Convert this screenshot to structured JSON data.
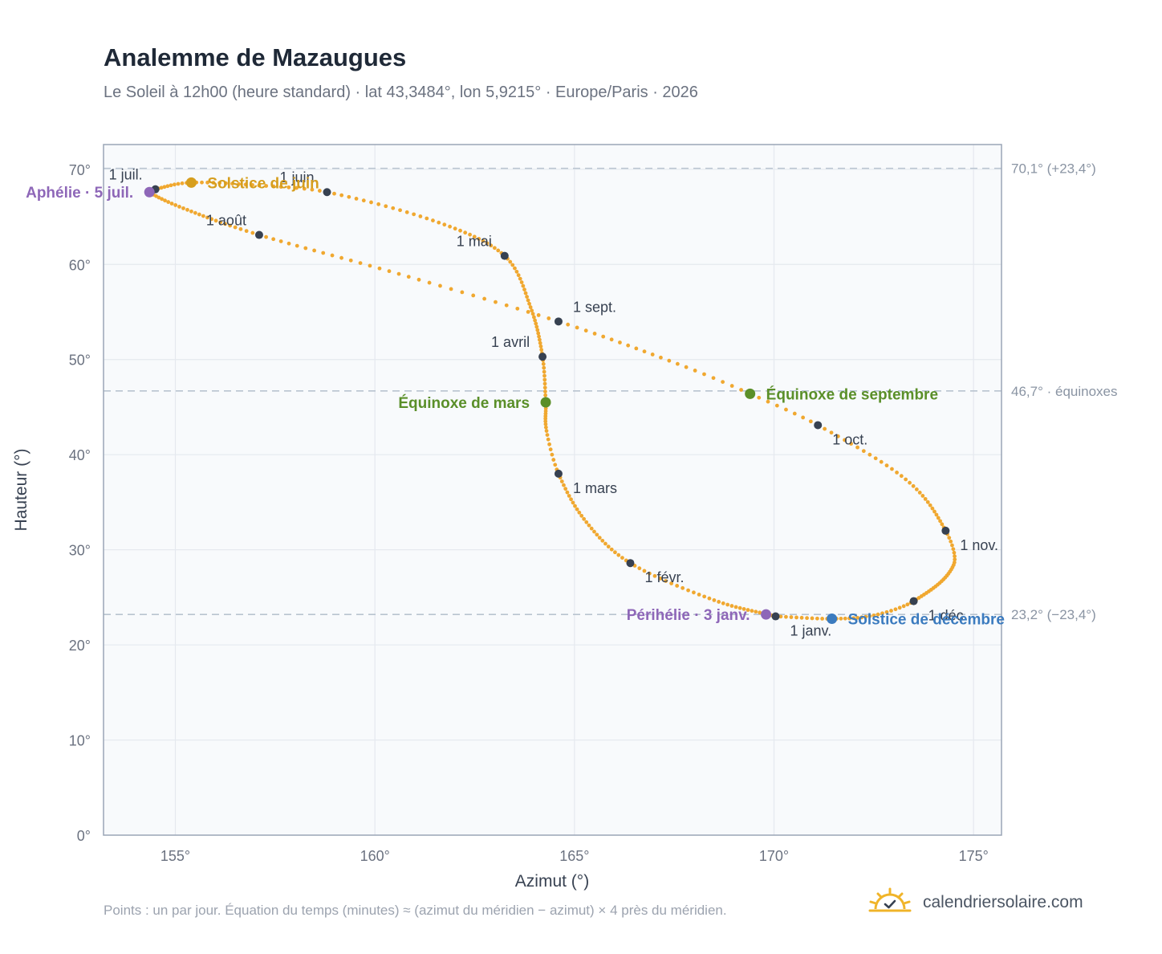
{
  "header": {
    "title": "Analemme de Mazaugues",
    "subtitle": "Le Soleil à 12h00 (heure standard) · lat 43,3484°, lon 5,9215° · Europe/Paris · 2026"
  },
  "footer": {
    "note": "Points : un par jour. Équation du temps (minutes) ≈ (azimut du méridien − azimut) × 4 près du méridien.",
    "brand": "calendriersolaire.com",
    "brand_icon": "sun-check-icon"
  },
  "colors": {
    "curve": "#f0a830",
    "month_marker": "#374151",
    "solstice_june": "#d69e1e",
    "solstice_december": "#3b7bbf",
    "equinox": "#5a8f29",
    "apsis": "#8e67b8",
    "reference_line": "#b9c4d0",
    "plot_bg": "#f8fafc",
    "grid": "#e5e9ef",
    "axis_frame": "#9aa5b6"
  },
  "chart_data": {
    "type": "scatter",
    "xlabel": "Azimut (°)",
    "ylabel": "Hauteur (°)",
    "xlim": [
      153.2,
      175.7
    ],
    "ylim": [
      0,
      72.6
    ],
    "grid": true,
    "x_ticks": [
      {
        "value": 155,
        "label": "155°"
      },
      {
        "value": 160,
        "label": "160°"
      },
      {
        "value": 165,
        "label": "165°"
      },
      {
        "value": 170,
        "label": "170°"
      },
      {
        "value": 175,
        "label": "175°"
      }
    ],
    "y_ticks": [
      {
        "value": 0,
        "label": "0°"
      },
      {
        "value": 10,
        "label": "10°"
      },
      {
        "value": 20,
        "label": "20°"
      },
      {
        "value": 30,
        "label": "30°"
      },
      {
        "value": 40,
        "label": "40°"
      },
      {
        "value": 50,
        "label": "50°"
      },
      {
        "value": 60,
        "label": "60°"
      },
      {
        "value": 70,
        "label": "70°"
      }
    ],
    "reference_lines": [
      {
        "y": 70.1,
        "label": "70,1° (+23,4°)"
      },
      {
        "y": 46.7,
        "label": "46,7° · équinoxes"
      },
      {
        "y": 23.2,
        "label": "23,2° (−23,4°)"
      }
    ],
    "curve_anchors": [
      {
        "doy": 0,
        "az": 170.04,
        "alt": 23.0
      },
      {
        "doy": 15,
        "az": 168.5,
        "alt": 24.7
      },
      {
        "doy": 31,
        "az": 166.4,
        "alt": 28.6
      },
      {
        "doy": 45,
        "az": 165.3,
        "alt": 32.9
      },
      {
        "doy": 59,
        "az": 164.6,
        "alt": 38.0
      },
      {
        "doy": 68,
        "az": 164.3,
        "alt": 42.5
      },
      {
        "doy": 78,
        "az": 164.28,
        "alt": 45.5
      },
      {
        "doy": 90,
        "az": 164.2,
        "alt": 50.3
      },
      {
        "doy": 105,
        "az": 163.9,
        "alt": 55.5
      },
      {
        "doy": 120,
        "az": 163.25,
        "alt": 60.9
      },
      {
        "doy": 135,
        "az": 161.6,
        "alt": 64.4
      },
      {
        "doy": 151,
        "az": 158.8,
        "alt": 67.6
      },
      {
        "doy": 160,
        "az": 157.1,
        "alt": 68.3
      },
      {
        "doy": 171,
        "az": 155.4,
        "alt": 68.6
      },
      {
        "doy": 181,
        "az": 154.5,
        "alt": 67.9
      },
      {
        "doy": 185,
        "az": 154.35,
        "alt": 67.6
      },
      {
        "doy": 196,
        "az": 155.2,
        "alt": 65.9
      },
      {
        "doy": 212,
        "az": 157.1,
        "alt": 63.1
      },
      {
        "doy": 228,
        "az": 160.6,
        "alt": 59.0
      },
      {
        "doy": 243,
        "az": 164.6,
        "alt": 54.0
      },
      {
        "doy": 258,
        "az": 167.8,
        "alt": 49.2
      },
      {
        "doy": 265,
        "az": 169.4,
        "alt": 46.4
      },
      {
        "doy": 273,
        "az": 171.1,
        "alt": 43.1
      },
      {
        "doy": 288,
        "az": 173.3,
        "alt": 37.4
      },
      {
        "doy": 304,
        "az": 174.3,
        "alt": 32.0
      },
      {
        "doy": 314,
        "az": 174.5,
        "alt": 28.4
      },
      {
        "doy": 334,
        "az": 173.5,
        "alt": 24.6
      },
      {
        "doy": 344,
        "az": 172.5,
        "alt": 23.1
      },
      {
        "doy": 354,
        "az": 171.45,
        "alt": 22.75
      },
      {
        "doy": 365,
        "az": 170.04,
        "alt": 23.0
      }
    ],
    "month_markers": [
      {
        "label": "1 janv.",
        "az": 170.04,
        "alt": 23.0,
        "pos": "below-right"
      },
      {
        "label": "1 févr.",
        "az": 166.4,
        "alt": 28.6,
        "pos": "below-right"
      },
      {
        "label": "1 mars",
        "az": 164.6,
        "alt": 38.0,
        "pos": "below-right"
      },
      {
        "label": "1 avril",
        "az": 164.2,
        "alt": 50.3,
        "pos": "above-left"
      },
      {
        "label": "1 mai",
        "az": 163.25,
        "alt": 60.9,
        "pos": "above-left"
      },
      {
        "label": "1 juin",
        "az": 158.8,
        "alt": 67.6,
        "pos": "above-left"
      },
      {
        "label": "1 juil.",
        "az": 154.5,
        "alt": 67.9,
        "pos": "above-left"
      },
      {
        "label": "1 août",
        "az": 157.1,
        "alt": 63.1,
        "pos": "above-left"
      },
      {
        "label": "1 sept.",
        "az": 164.6,
        "alt": 54.0,
        "pos": "above-right"
      },
      {
        "label": "1 oct.",
        "az": 171.1,
        "alt": 43.1,
        "pos": "below-right"
      },
      {
        "label": "1 nov.",
        "az": 174.3,
        "alt": 32.0,
        "pos": "below-right"
      },
      {
        "label": "1 déc.",
        "az": 173.5,
        "alt": 24.6,
        "pos": "below-right"
      }
    ],
    "special_points": [
      {
        "label": "Solstice de juin",
        "az": 155.4,
        "alt": 68.6,
        "color": "#d69e1e",
        "pos": "right"
      },
      {
        "label": "Aphélie · 5 juil.",
        "az": 154.35,
        "alt": 67.6,
        "color": "#8e67b8",
        "pos": "left"
      },
      {
        "label": "Équinoxe de mars",
        "az": 164.28,
        "alt": 45.5,
        "color": "#5a8f29",
        "pos": "left"
      },
      {
        "label": "Équinoxe de septembre",
        "az": 169.4,
        "alt": 46.4,
        "color": "#5a8f29",
        "pos": "right"
      },
      {
        "label": "Périhélie · 3 janv.",
        "az": 169.8,
        "alt": 23.2,
        "color": "#8e67b8",
        "pos": "left"
      },
      {
        "label": "Solstice de décembre",
        "az": 171.45,
        "alt": 22.75,
        "color": "#3b7bbf",
        "pos": "right"
      }
    ]
  }
}
